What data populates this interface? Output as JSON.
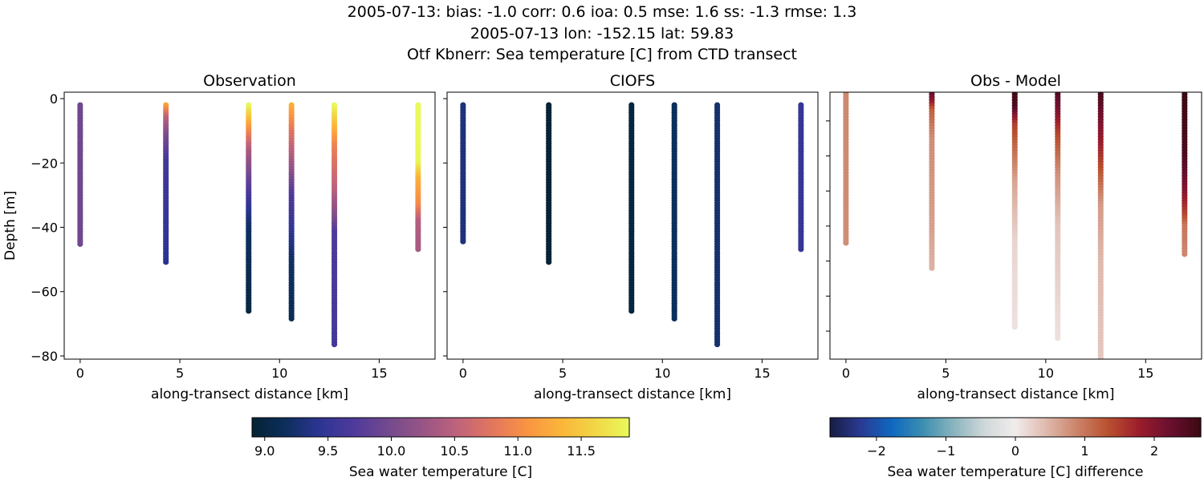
{
  "title_lines": [
    "2005-07-13: bias: -1.0  corr: 0.6  ioa: 0.5  mse: 1.6  ss: -1.3  rmse: 1.3",
    "2005-07-13 lon: -152.15 lat: 59.83",
    "Otf Kbnerr: Sea temperature [C] from CTD transect"
  ],
  "chart_data": [
    {
      "type": "scatter",
      "title": "Observation",
      "xlabel": "along-transect distance [km]",
      "ylabel": "Depth [m]",
      "xlim": [
        -0.8,
        17.8
      ],
      "ylim": [
        -81,
        2
      ],
      "xticks": [
        0,
        5,
        10,
        15
      ],
      "yticks": [
        0,
        -20,
        -40,
        -60,
        -80
      ],
      "colormap": "thermal",
      "clim": [
        8.9,
        11.88
      ],
      "casts": [
        {
          "x": 0,
          "profile": [
            [
              2,
              9.95
            ],
            [
              45.5,
              9.95
            ]
          ]
        },
        {
          "x": 4.3,
          "profile": [
            [
              2,
              11.2
            ],
            [
              6,
              10.5
            ],
            [
              12,
              10.0
            ],
            [
              20,
              9.6
            ],
            [
              40,
              9.5
            ],
            [
              51.5,
              9.4
            ]
          ]
        },
        {
          "x": 8.45,
          "profile": [
            [
              2,
              11.9
            ],
            [
              8,
              11.2
            ],
            [
              16,
              10.4
            ],
            [
              25,
              9.9
            ],
            [
              33,
              9.5
            ],
            [
              40,
              9.2
            ],
            [
              66,
              9.0
            ]
          ]
        },
        {
          "x": 10.6,
          "profile": [
            [
              2,
              11.3
            ],
            [
              10,
              10.8
            ],
            [
              22,
              10.2
            ],
            [
              30,
              9.7
            ],
            [
              40,
              9.5
            ],
            [
              50,
              9.2
            ],
            [
              69,
              9.1
            ]
          ]
        },
        {
          "x": 12.75,
          "profile": [
            [
              2,
              11.9
            ],
            [
              8,
              11.4
            ],
            [
              15,
              10.9
            ],
            [
              28,
              10.5
            ],
            [
              36,
              10.1
            ],
            [
              42,
              9.7
            ],
            [
              77,
              9.6
            ]
          ]
        },
        {
          "x": 16.95,
          "profile": [
            [
              2,
              11.9
            ],
            [
              20,
              11.85
            ],
            [
              25,
              11.3
            ],
            [
              33,
              11.0
            ],
            [
              38,
              10.45
            ],
            [
              47.5,
              10.35
            ]
          ]
        }
      ]
    },
    {
      "type": "scatter",
      "title": "CIOFS",
      "xlabel": "along-transect distance [km]",
      "xlim": [
        -0.8,
        17.8
      ],
      "ylim": [
        -81,
        2
      ],
      "xticks": [
        0,
        5,
        10,
        15
      ],
      "yticks": [
        0,
        -20,
        -40,
        -60,
        -80
      ],
      "colormap": "thermal",
      "clim": [
        8.9,
        11.88
      ],
      "casts": [
        {
          "x": 0,
          "profile": [
            [
              2,
              9.3
            ],
            [
              44.5,
              9.3
            ]
          ]
        },
        {
          "x": 4.3,
          "profile": [
            [
              2,
              8.92
            ],
            [
              51.5,
              8.92
            ]
          ]
        },
        {
          "x": 8.45,
          "profile": [
            [
              2,
              8.97
            ],
            [
              66,
              8.97
            ]
          ]
        },
        {
          "x": 10.6,
          "profile": [
            [
              2,
              9.15
            ],
            [
              69,
              9.15
            ]
          ]
        },
        {
          "x": 12.75,
          "profile": [
            [
              2,
              9.25
            ],
            [
              77,
              9.25
            ]
          ]
        },
        {
          "x": 16.95,
          "profile": [
            [
              2,
              9.5
            ],
            [
              47.5,
              9.5
            ]
          ]
        }
      ]
    },
    {
      "type": "scatter",
      "title": "Obs - Model",
      "xlabel": "along-transect distance [km]",
      "xlim": [
        -0.8,
        17.8
      ],
      "ylim": [
        -78,
        -1.8
      ],
      "xticks": [
        0,
        5,
        10,
        15
      ],
      "yticks": [
        -10,
        -20,
        -30,
        -40,
        -50,
        -60,
        -70
      ],
      "colormap": "balance",
      "clim": [
        -2.67,
        2.67
      ],
      "casts": [
        {
          "x": 0,
          "profile": [
            [
              0,
              0.85
            ],
            [
              45,
              0.8
            ]
          ]
        },
        {
          "x": 4.3,
          "profile": [
            [
              0,
              2.5
            ],
            [
              4,
              2.0
            ],
            [
              7,
              1.2
            ],
            [
              15,
              0.8
            ],
            [
              40,
              0.65
            ],
            [
              52.5,
              0.5
            ]
          ]
        },
        {
          "x": 8.45,
          "profile": [
            [
              0,
              2.7
            ],
            [
              6,
              2.5
            ],
            [
              11,
              1.5
            ],
            [
              18,
              1.1
            ],
            [
              28,
              0.6
            ],
            [
              45,
              0.2
            ],
            [
              69,
              0.1
            ]
          ]
        },
        {
          "x": 10.6,
          "profile": [
            [
              0,
              2.6
            ],
            [
              8,
              2.0
            ],
            [
              14,
              1.4
            ],
            [
              25,
              0.8
            ],
            [
              40,
              0.35
            ],
            [
              72,
              0.1
            ]
          ]
        },
        {
          "x": 12.75,
          "profile": [
            [
              0,
              2.7
            ],
            [
              8,
              2.2
            ],
            [
              18,
              1.7
            ],
            [
              26,
              1.2
            ],
            [
              34,
              0.7
            ],
            [
              50,
              0.45
            ],
            [
              82,
              0.3
            ]
          ]
        },
        {
          "x": 16.95,
          "profile": [
            [
              0,
              2.7
            ],
            [
              20,
              2.5
            ],
            [
              30,
              2.0
            ],
            [
              37,
              1.4
            ],
            [
              40,
              1.0
            ],
            [
              48.5,
              0.85
            ]
          ]
        }
      ]
    }
  ],
  "colorbars": [
    {
      "label": "Sea water temperature [C]",
      "ticks": [
        "9.0",
        "9.5",
        "10.0",
        "10.5",
        "11.0",
        "11.5"
      ],
      "values": [
        9.0,
        9.5,
        10.0,
        10.5,
        11.0,
        11.5
      ],
      "clim": [
        8.9,
        11.88
      ],
      "colormap": "thermal"
    },
    {
      "label": "Sea water temperature [C] difference",
      "ticks": [
        "−2",
        "−1",
        "0",
        "1",
        "2"
      ],
      "values": [
        -2,
        -1,
        0,
        1,
        2
      ],
      "clim": [
        -2.67,
        2.67
      ],
      "colormap": "balance"
    }
  ],
  "colormaps": {
    "thermal": [
      "#042333",
      "#0d2f5e",
      "#2e3594",
      "#503a9a",
      "#744a8e",
      "#995585",
      "#c0637b",
      "#e2765e",
      "#f99343",
      "#fbb53a",
      "#f2d645",
      "#e8fa5b"
    ],
    "balance": [
      "#181c43",
      "#2a3a93",
      "#0f68c0",
      "#3c8eb0",
      "#8ab4be",
      "#cfd8d9",
      "#f1ecec",
      "#dfb9ad",
      "#cb8369",
      "#b9502f",
      "#9b1d2c",
      "#6a0f2f",
      "#3c0912"
    ]
  }
}
